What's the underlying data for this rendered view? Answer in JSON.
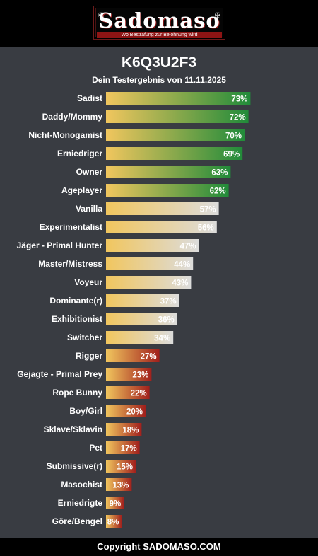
{
  "logo": {
    "title": "Sadomaso",
    "tagline": "Wo Bestrafung zur Belohnung wird"
  },
  "chart_data": {
    "type": "bar",
    "orientation": "horizontal",
    "title": "K6Q3U2F3",
    "subtitle": "Dein Testergebnis von 11.11.2025",
    "xlim": [
      0,
      100
    ],
    "value_suffix": "%",
    "categories": [
      "Sadist",
      "Daddy/Mommy",
      "Nicht-Monogamist",
      "Erniedriger",
      "Owner",
      "Ageplayer",
      "Vanilla",
      "Experimentalist",
      "Jäger - Primal Hunter",
      "Master/Mistress",
      "Voyeur",
      "Dominante(r)",
      "Exhibitionist",
      "Switcher",
      "Rigger",
      "Gejagte - Primal Prey",
      "Rope Bunny",
      "Boy/Girl",
      "Sklave/Sklavin",
      "Pet",
      "Submissive(r)",
      "Masochist",
      "Erniedrigte",
      "Göre/Bengel"
    ],
    "values": [
      73,
      72,
      70,
      69,
      63,
      62,
      57,
      56,
      47,
      44,
      43,
      37,
      36,
      34,
      27,
      23,
      22,
      20,
      18,
      17,
      15,
      13,
      9,
      8
    ],
    "colors": {
      "base": "#f1c65e",
      "high": "#218b3a",
      "mid": "#dcdcdc",
      "low": "#a11f1c"
    }
  },
  "footer": {
    "text": "Copyright SADOMASO.COM"
  }
}
